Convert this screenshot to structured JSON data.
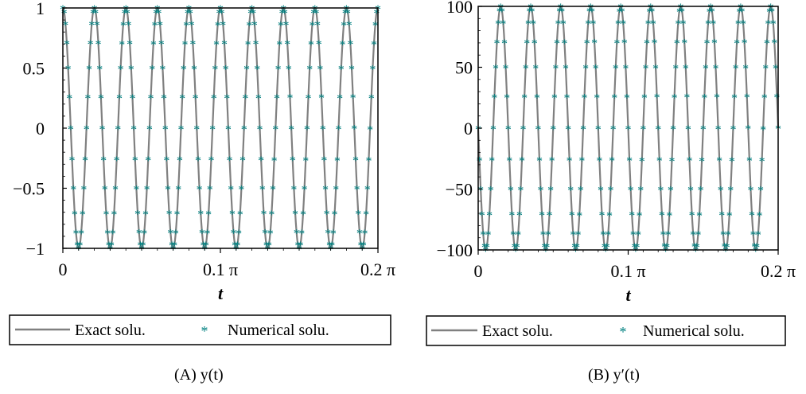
{
  "chart_data": [
    {
      "type": "line",
      "xlabel": "t",
      "ylabel": "",
      "xlim": [
        0,
        0.6283
      ],
      "ylim": [
        -1,
        1
      ],
      "x_ticks": [
        {
          "value": 0,
          "label": "0"
        },
        {
          "value": 0.31416,
          "label": "0.1 π"
        },
        {
          "value": 0.62832,
          "label": "0.2 π"
        }
      ],
      "y_ticks": [
        {
          "value": 1,
          "label": "1"
        },
        {
          "value": 0.5,
          "label": "0.5"
        },
        {
          "value": 0,
          "label": "0"
        },
        {
          "value": -0.5,
          "label": "−0.5"
        },
        {
          "value": -1,
          "label": "−1"
        }
      ],
      "function": "cos(100t)",
      "amplitude": 1,
      "omega": 100,
      "phase": "cos",
      "series": [
        {
          "name": "Exact solu.",
          "style": "line",
          "color": "#808080"
        },
        {
          "name": "Numerical solu.",
          "style": "star-markers",
          "color": "#008080"
        }
      ],
      "caption": "(A) y(t)",
      "grid": false,
      "legend_position": "bottom"
    },
    {
      "type": "line",
      "xlabel": "t",
      "ylabel": "",
      "xlim": [
        0,
        0.6283
      ],
      "ylim": [
        -100,
        100
      ],
      "x_ticks": [
        {
          "value": 0,
          "label": "0"
        },
        {
          "value": 0.31416,
          "label": "0.1 π"
        },
        {
          "value": 0.62832,
          "label": "0.2 π"
        }
      ],
      "y_ticks": [
        {
          "value": 100,
          "label": "100"
        },
        {
          "value": 50,
          "label": "50"
        },
        {
          "value": 0,
          "label": "0"
        },
        {
          "value": -50,
          "label": "−50"
        },
        {
          "value": -100,
          "label": "−100"
        }
      ],
      "function": "-100 sin(100t)",
      "amplitude": 100,
      "omega": 100,
      "phase": "-sin",
      "series": [
        {
          "name": "Exact solu.",
          "style": "line",
          "color": "#808080"
        },
        {
          "name": "Numerical solu.",
          "style": "star-markers",
          "color": "#008080"
        }
      ],
      "caption": "(B) y′(t)",
      "grid": false,
      "legend_position": "bottom"
    }
  ]
}
